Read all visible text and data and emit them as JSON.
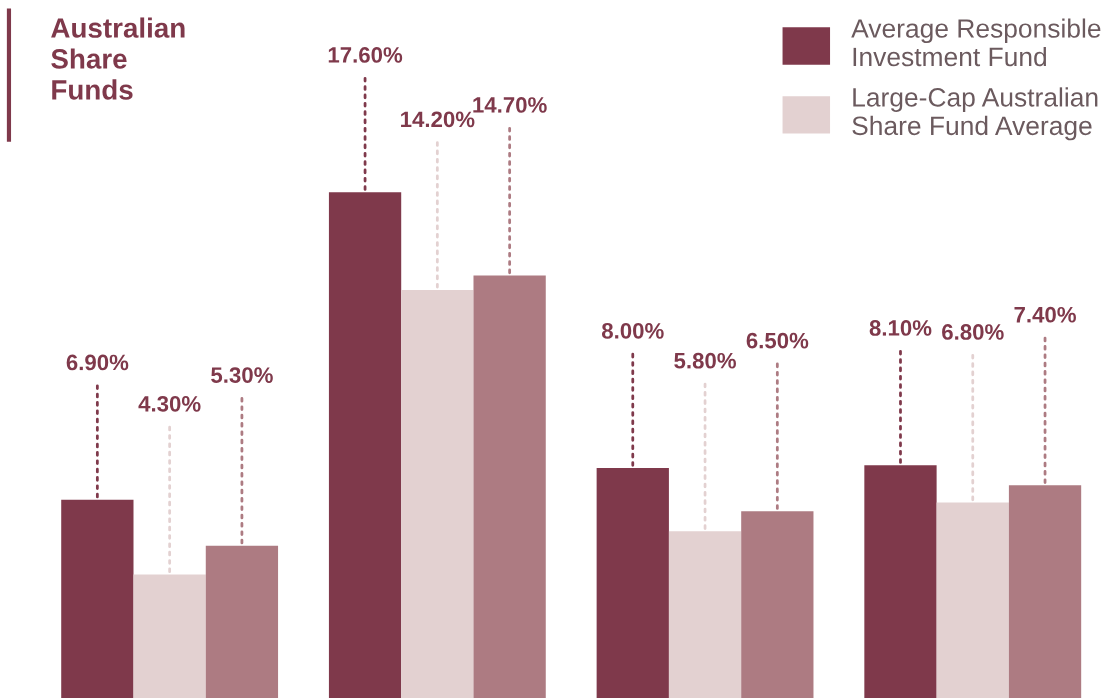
{
  "chart_data": {
    "type": "bar",
    "title": "Australian\nShare\nFunds",
    "categories": [
      null,
      null,
      null,
      null
    ],
    "series": [
      {
        "name": "Average Responsible\nInvestment Fund",
        "color": "#7f394b",
        "values": [
          6.9,
          17.6,
          8.0,
          8.1
        ],
        "value_labels": [
          "6.90%",
          "17.60%",
          "8.00%",
          "8.10%"
        ]
      },
      {
        "name": "Large-Cap Australian\nShare Fund Average",
        "color": "#e3d1d1",
        "values": [
          4.3,
          14.2,
          5.8,
          6.8
        ],
        "value_labels": [
          "4.30%",
          "14.20%",
          "5.80%",
          "6.80%"
        ]
      },
      {
        "color": "#ad7b82",
        "values": [
          5.3,
          14.7,
          6.5,
          7.4
        ],
        "value_labels": [
          "5.30%",
          "14.70%",
          "6.50%",
          "7.40%"
        ]
      }
    ],
    "legend": "top right",
    "grid": false
  }
}
